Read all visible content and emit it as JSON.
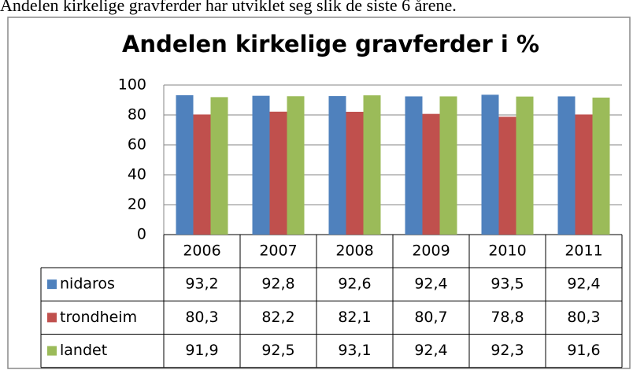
{
  "caption": "Andelen kirkelige gravferder har utviklet seg slik de siste 6 årene.",
  "chart_data": {
    "type": "bar",
    "title": "Andelen kirkelige gravferder i %",
    "categories": [
      "2006",
      "2007",
      "2008",
      "2009",
      "2010",
      "2011"
    ],
    "series": [
      {
        "name": "nidaros",
        "color": "#4f81bd",
        "values": [
          93.2,
          92.8,
          92.6,
          92.4,
          93.5,
          92.4
        ],
        "value_labels": [
          "93,2",
          "92,8",
          "92,6",
          "92,4",
          "93,5",
          "92,4"
        ]
      },
      {
        "name": "trondheim",
        "color": "#c0504d",
        "values": [
          80.3,
          82.2,
          82.1,
          80.7,
          78.8,
          80.3
        ],
        "value_labels": [
          "80,3",
          "82,2",
          "82,1",
          "80,7",
          "78,8",
          "80,3"
        ]
      },
      {
        "name": "landet",
        "color": "#9bbb59",
        "values": [
          91.9,
          92.5,
          93.1,
          92.4,
          92.3,
          91.6
        ],
        "value_labels": [
          "91,9",
          "92,5",
          "93,1",
          "92,4",
          "92,3",
          "91,6"
        ]
      }
    ],
    "ylim": [
      0,
      100
    ],
    "yticks": [
      0,
      20,
      40,
      60,
      80,
      100
    ],
    "grid": true
  }
}
